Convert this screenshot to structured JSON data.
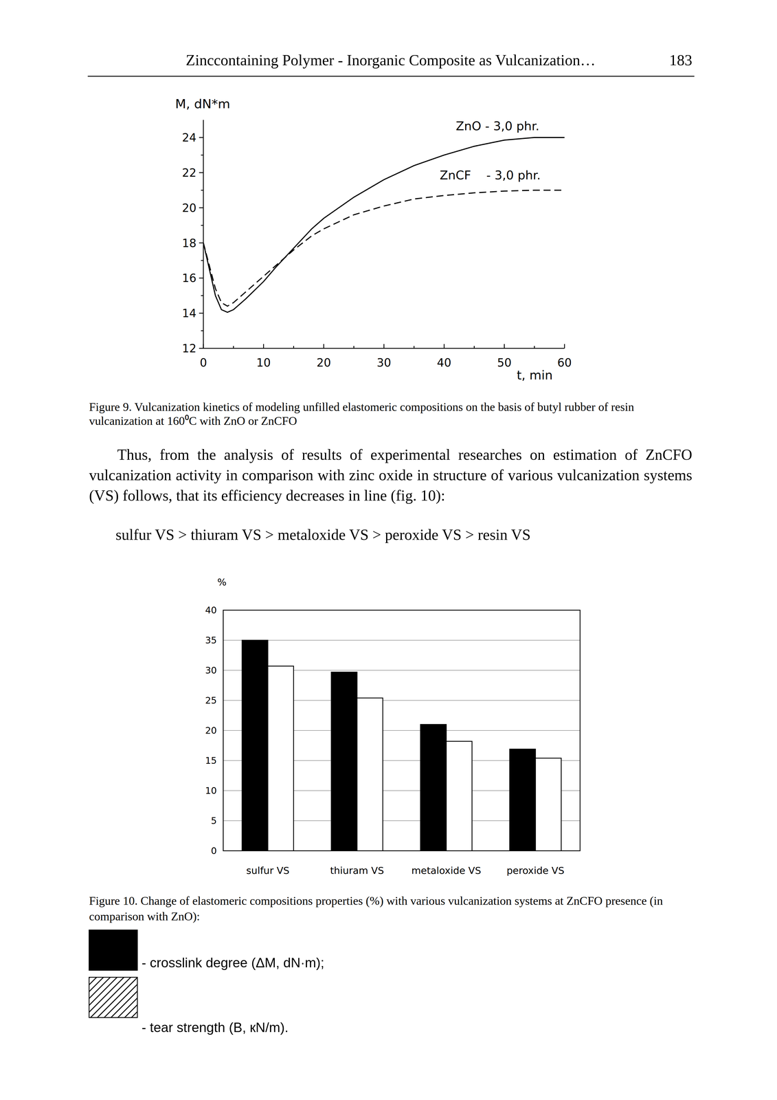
{
  "header": {
    "title": "Zinccontaining Polymer - Inorganic Composite as Vulcanization…",
    "page": "183"
  },
  "chart_data": [
    {
      "type": "line",
      "x_label": "t, min",
      "y_label": "M, dN*m",
      "x": [
        0,
        1,
        2,
        3,
        4,
        5,
        7,
        10,
        12,
        15,
        18,
        20,
        25,
        30,
        35,
        40,
        45,
        50,
        55,
        60
      ],
      "series": [
        {
          "name": "ZnO - 3,0 phr.",
          "color": "#000000",
          "line_style": "solid",
          "values": [
            18,
            16.5,
            15,
            14.2,
            14.05,
            14.2,
            14.8,
            15.8,
            16.6,
            17.7,
            18.8,
            19.4,
            20.6,
            21.6,
            22.4,
            23.0,
            23.5,
            23.85,
            24.0,
            24.0
          ]
        },
        {
          "name": "ZnCF    - 3,0 phr.",
          "color": "#000000",
          "line_style": "dashed",
          "values": [
            18,
            16.7,
            15.4,
            14.6,
            14.4,
            14.6,
            15.2,
            16.1,
            16.7,
            17.6,
            18.4,
            18.8,
            19.6,
            20.1,
            20.5,
            20.7,
            20.85,
            20.95,
            21.0,
            21.0
          ]
        }
      ],
      "xlim": [
        0,
        60
      ],
      "xticks": [
        0,
        10,
        20,
        30,
        40,
        50,
        60
      ],
      "ylim": [
        12,
        25
      ],
      "yticks": [
        12,
        14,
        16,
        18,
        20,
        22,
        24
      ],
      "grid": false
    },
    {
      "type": "bar",
      "y_label": "%",
      "categories": [
        "sulfur VS",
        "thiuram VS",
        "metaloxide VS",
        "peroxide VS"
      ],
      "series": [
        {
          "name": "- crosslink degree (ΔM, dN·m);",
          "color": "#000000",
          "values": [
            35,
            29.7,
            21,
            16.9
          ]
        },
        {
          "name": "- tear strength (B, кN/m).",
          "color": "#ffffff",
          "values": [
            30.7,
            25.4,
            18.2,
            15.4
          ]
        }
      ],
      "ylim": [
        0,
        40
      ],
      "yticks": [
        0,
        5,
        10,
        15,
        20,
        25,
        30,
        35,
        40
      ],
      "grid": true
    }
  ],
  "captions": [
    "Figure 9. Vulcanization kinetics of modeling unfilled elastomeric compositions on the basis of butyl rubber of resin vulcanization at 160⁰C with ZnO or ZnCFO",
    "Figure 10. Change of elastomeric compositions properties (%) with various vulcanization systems at ZnCFO presence (in comparison with ZnO):"
  ],
  "paragraph": "Thus, from the analysis of results of experimental researches on estimation of ZnCFO vulcanization activity in comparison with zinc oxide in structure of various vulcanization systems (VS) follows, that its efficiency decreases in line (fig. 10):",
  "order_line": "sulfur VS > thiuram VS > metaloxide VS > peroxide VS > resin VS"
}
